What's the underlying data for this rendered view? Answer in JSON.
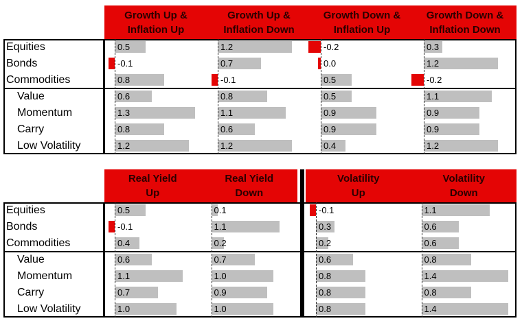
{
  "colors": {
    "header_bg": "#e40505",
    "header_text": "#2a0000",
    "bar_positive": "#bfbfbf",
    "bar_negative": "#e40505",
    "value_text": "#000000",
    "border": "#000000"
  },
  "row_labels": [
    "Equities",
    "Bonds",
    "Commodities",
    "Value",
    "Momentum",
    "Carry",
    "Low Volatility"
  ],
  "indented_rows": [
    "Value",
    "Momentum",
    "Carry",
    "Low Volatility"
  ],
  "chart_data": [
    {
      "type": "bar",
      "orientation": "horizontal",
      "title": "",
      "categories": [
        "Equities",
        "Bonds",
        "Commodities",
        "Value",
        "Momentum",
        "Carry",
        "Low Volatility"
      ],
      "category_groups": [
        [
          "Equities",
          "Bonds",
          "Commodities"
        ],
        [
          "Value",
          "Momentum",
          "Carry",
          "Low Volatility"
        ]
      ],
      "series": [
        {
          "name": "Growth Up &\nInflation Up",
          "values": [
            0.5,
            -0.1,
            0.8,
            0.6,
            1.3,
            0.8,
            1.2
          ]
        },
        {
          "name": "Growth Up &\nInflation Down",
          "values": [
            1.2,
            0.7,
            -0.1,
            0.8,
            1.1,
            0.6,
            1.2
          ]
        },
        {
          "name": "Growth Down &\nInflation Up",
          "values": [
            -0.2,
            0.0,
            0.5,
            0.5,
            0.9,
            0.9,
            0.4
          ]
        },
        {
          "name": "Growth Down &\nInflation Down",
          "values": [
            0.3,
            1.2,
            -0.2,
            1.1,
            0.9,
            0.9,
            1.2
          ]
        }
      ],
      "value_labels_decimals": 1,
      "xlim": [
        -0.3,
        1.5
      ],
      "grid": false,
      "legend": false
    },
    {
      "type": "bar",
      "orientation": "horizontal",
      "title": "",
      "categories": [
        "Equities",
        "Bonds",
        "Commodities",
        "Value",
        "Momentum",
        "Carry",
        "Low Volatility"
      ],
      "category_groups": [
        [
          "Equities",
          "Bonds",
          "Commodities"
        ],
        [
          "Value",
          "Momentum",
          "Carry",
          "Low Volatility"
        ]
      ],
      "series": [
        {
          "name": "Real Yield\nUp",
          "values": [
            0.5,
            -0.1,
            0.4,
            0.6,
            1.1,
            0.7,
            1.0
          ]
        },
        {
          "name": "Real Yield\nDown",
          "values": [
            0.1,
            1.1,
            0.2,
            0.7,
            1.0,
            0.9,
            1.0
          ]
        },
        {
          "name": "Volatility\nUp",
          "values": [
            -0.1,
            0.3,
            0.2,
            0.6,
            0.8,
            0.8,
            0.8
          ]
        },
        {
          "name": "Volatility\nDown",
          "values": [
            1.1,
            0.6,
            0.6,
            0.8,
            1.4,
            0.8,
            1.4
          ]
        }
      ],
      "series_group_split_after": 2,
      "value_labels_decimals": 1,
      "xlim": [
        -0.3,
        1.5
      ],
      "grid": false,
      "legend": false
    }
  ]
}
